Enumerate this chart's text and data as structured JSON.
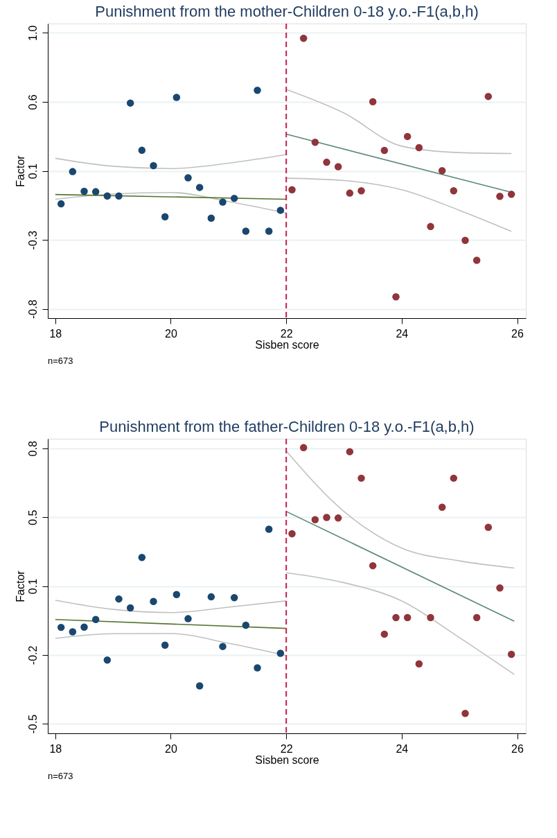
{
  "chart_data": [
    {
      "type": "scatter",
      "title": "Punishment from the mother-Children 0-18 y.o.-F1(a,b,h)",
      "xlabel": "Sisben score",
      "ylabel": "Factor",
      "annotations": [
        "n=673"
      ],
      "xlim": [
        17.87,
        26.15
      ],
      "xticks": [
        18,
        20,
        22,
        24,
        26
      ],
      "ylim": [
        -0.86,
        1.06
      ],
      "yticks": [
        -0.8,
        {
          "value": -0.35,
          "label": "-0.3"
        },
        0.1,
        {
          "value": 0.55,
          "label": "0.6"
        },
        {
          "value": 1.0,
          "label": "1.0"
        }
      ],
      "grid": "y",
      "ref_lines": [
        {
          "axis": "x",
          "value": 22,
          "color": "#c41e4a",
          "line_style": "dashed"
        }
      ],
      "series": [
        {
          "type": "line",
          "color": "#c0c0c0",
          "x": [
            18,
            19,
            20,
            21,
            22
          ],
          "values": [
            0.182,
            0.13,
            0.115,
            0.15,
            0.206
          ]
        },
        {
          "type": "line",
          "color": "#c0c0c0",
          "x": [
            18,
            19,
            20,
            21,
            22
          ],
          "values": [
            -0.085,
            -0.05,
            -0.041,
            -0.1,
            -0.175
          ]
        },
        {
          "type": "line",
          "color": "#55752f",
          "x": [
            18,
            22
          ],
          "values": [
            -0.054,
            -0.085
          ]
        },
        {
          "type": "line",
          "color": "#c0c0c0",
          "x": [
            22,
            23,
            24,
            25,
            25.9
          ],
          "values": [
            0.631,
            0.477,
            0.261,
            0.219,
            0.213
          ]
        },
        {
          "type": "line",
          "color": "#c0c0c0",
          "x": [
            22,
            23,
            24,
            25,
            25.9
          ],
          "values": [
            0.052,
            0.037,
            -0.023,
            -0.157,
            -0.294
          ]
        },
        {
          "type": "line",
          "color": "#5c8a78",
          "x": [
            22,
            25.95
          ],
          "values": [
            0.339,
            -0.045
          ]
        },
        {
          "type": "scatter",
          "marker": "circle",
          "color": "#1a476f",
          "x": [
            18.1,
            18.3,
            18.5,
            18.7,
            18.9,
            19.1,
            19.3,
            19.5,
            19.7,
            19.9,
            20.1,
            20.3,
            20.5,
            20.7,
            20.9,
            21.1,
            21.3,
            21.5,
            21.7,
            21.9
          ],
          "values": [
            -0.115,
            0.095,
            -0.033,
            -0.036,
            -0.064,
            -0.064,
            0.542,
            0.234,
            0.134,
            -0.199,
            0.579,
            0.055,
            -0.008,
            -0.208,
            -0.103,
            -0.079,
            -0.293,
            0.625,
            -0.293,
            -0.157
          ]
        },
        {
          "type": "scatter",
          "marker": "circle",
          "color": "#90353b",
          "x": [
            22.1,
            22.3,
            22.5,
            22.7,
            22.9,
            23.1,
            23.3,
            23.5,
            23.7,
            23.9,
            24.1,
            24.3,
            24.5,
            24.7,
            24.9,
            25.1,
            25.3,
            25.5,
            25.7,
            25.9
          ],
          "values": [
            -0.023,
            0.964,
            0.286,
            0.156,
            0.127,
            -0.045,
            -0.03,
            0.551,
            0.233,
            -0.721,
            0.324,
            0.251,
            -0.263,
            0.101,
            -0.03,
            -0.353,
            -0.483,
            0.585,
            -0.066,
            -0.053
          ]
        }
      ]
    },
    {
      "type": "scatter",
      "title": "Punishment from the father-Children 0-18 y.o.-F1(a,b,h)",
      "xlabel": "Sisben score",
      "ylabel": "Factor",
      "annotations": [
        "n=673"
      ],
      "xlim": [
        17.87,
        26.15
      ],
      "xticks": [
        18,
        20,
        22,
        24,
        26
      ],
      "ylim": [
        -0.545,
        0.845
      ],
      "yticks": [
        -0.5,
        {
          "value": -0.175,
          "label": "-0.2"
        },
        {
          "value": 0.15,
          "label": "0.1"
        },
        {
          "value": 0.475,
          "label": "0.5"
        },
        0.8
      ],
      "grid": "y",
      "ref_lines": [
        {
          "axis": "x",
          "value": 22,
          "color": "#c41e4a",
          "line_style": "dashed"
        }
      ],
      "series": [
        {
          "type": "line",
          "color": "#c0c0c0",
          "x": [
            18,
            19,
            20,
            21,
            22
          ],
          "values": [
            0.083,
            0.04,
            0.025,
            0.05,
            0.08
          ]
        },
        {
          "type": "line",
          "color": "#c0c0c0",
          "x": [
            18,
            19,
            20,
            21,
            22
          ],
          "values": [
            -0.097,
            -0.075,
            -0.074,
            -0.12,
            -0.178
          ]
        },
        {
          "type": "line",
          "color": "#55752f",
          "x": [
            18,
            22
          ],
          "values": [
            -0.008,
            -0.05
          ]
        },
        {
          "type": "line",
          "color": "#c0c0c0",
          "x": [
            22,
            23,
            24,
            25,
            25.95
          ],
          "values": [
            0.787,
            0.502,
            0.329,
            0.269,
            0.235
          ]
        },
        {
          "type": "line",
          "color": "#c0c0c0",
          "x": [
            22,
            23,
            24,
            25,
            25.95
          ],
          "values": [
            0.213,
            0.166,
            0.08,
            -0.093,
            -0.267
          ]
        },
        {
          "type": "line",
          "color": "#5c8a78",
          "x": [
            22,
            25.95
          ],
          "values": [
            0.502,
            -0.016
          ]
        },
        {
          "type": "scatter",
          "marker": "circle",
          "color": "#1a476f",
          "x": [
            18.1,
            18.3,
            18.5,
            18.7,
            18.9,
            19.1,
            19.3,
            19.5,
            19.7,
            19.9,
            20.1,
            20.3,
            20.5,
            20.7,
            20.9,
            21.1,
            21.3,
            21.5,
            21.7,
            21.9
          ],
          "values": [
            -0.045,
            -0.066,
            -0.044,
            -0.008,
            -0.199,
            0.089,
            0.047,
            0.285,
            0.077,
            -0.129,
            0.11,
            -0.004,
            -0.321,
            0.099,
            -0.135,
            0.095,
            -0.035,
            -0.236,
            0.418,
            -0.167
          ]
        },
        {
          "type": "scatter",
          "marker": "circle",
          "color": "#90353b",
          "x": [
            22.1,
            22.3,
            22.5,
            22.7,
            22.9,
            23.1,
            23.3,
            23.5,
            23.7,
            23.9,
            24.1,
            24.3,
            24.5,
            24.7,
            24.9,
            25.1,
            25.3,
            25.5,
            25.7,
            25.9
          ],
          "values": [
            0.397,
            0.803,
            0.463,
            0.474,
            0.471,
            0.784,
            0.659,
            0.246,
            -0.077,
            0.001,
            0.001,
            -0.217,
            0.001,
            0.522,
            0.659,
            -0.451,
            0.001,
            0.427,
            0.141,
            -0.172
          ]
        }
      ]
    }
  ]
}
